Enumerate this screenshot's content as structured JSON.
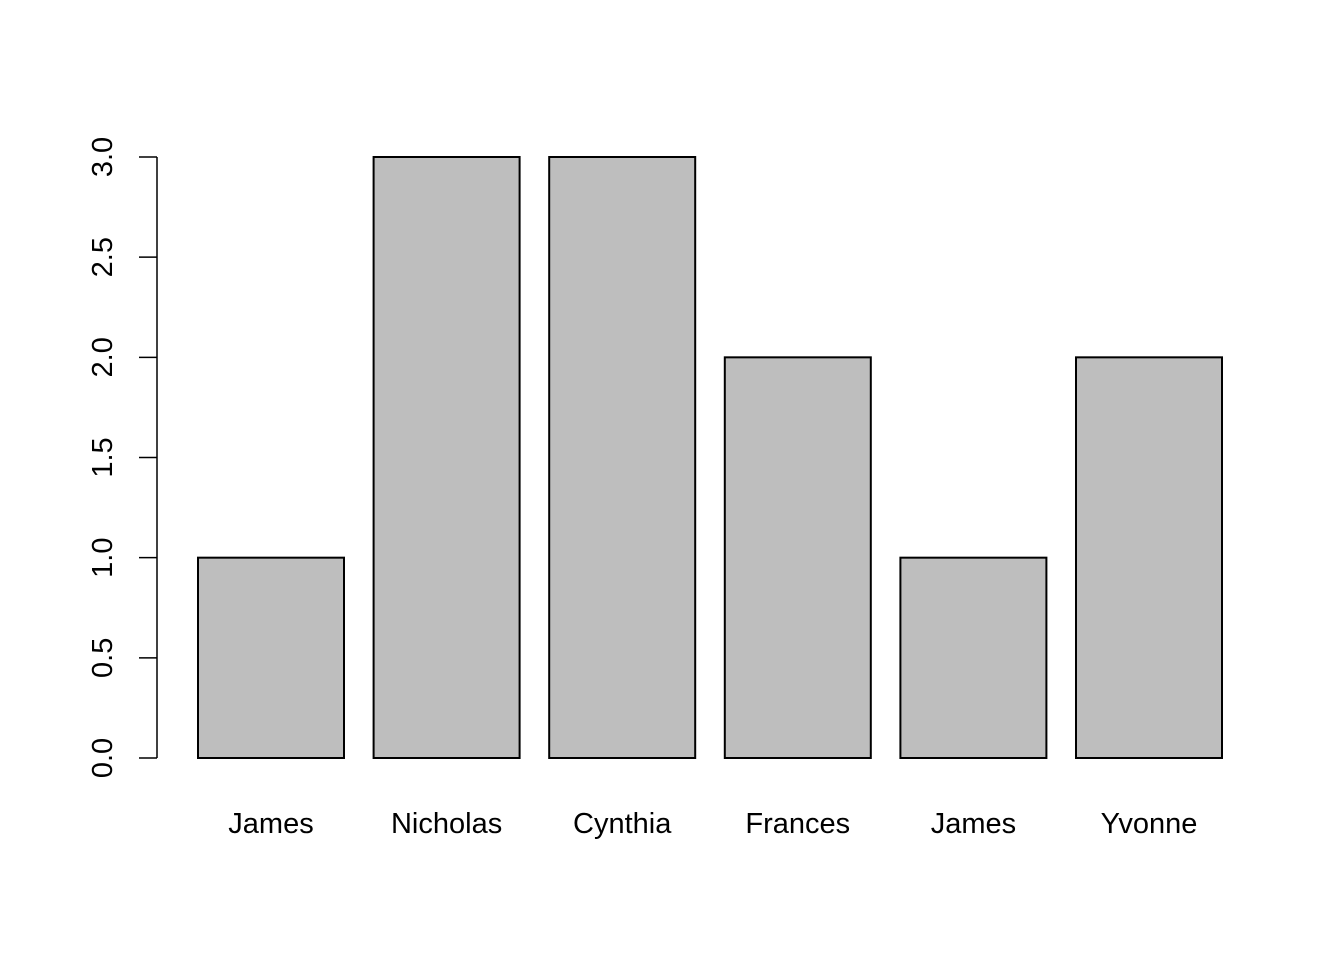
{
  "chart_data": {
    "type": "bar",
    "categories": [
      "James",
      "Nicholas",
      "Cynthia",
      "Frances",
      "James",
      "Yvonne"
    ],
    "values": [
      1,
      3,
      3,
      2,
      1,
      2
    ],
    "title": "",
    "xlabel": "",
    "ylabel": "",
    "ylim": [
      0,
      3
    ],
    "yticks": [
      "0.0",
      "0.5",
      "1.0",
      "1.5",
      "2.0",
      "2.5",
      "3.0"
    ],
    "grid": false,
    "bar_color": "#bebebe",
    "bar_border_color": "#000000"
  }
}
